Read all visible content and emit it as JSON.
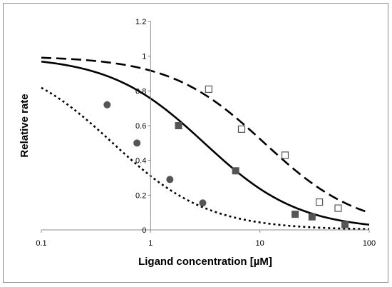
{
  "chart_data": {
    "type": "scatter",
    "title": "",
    "xlabel": "Ligand concentration [µM]",
    "ylabel": "Relative rate",
    "x_scale": "log",
    "xlim": [
      0.1,
      100
    ],
    "ylim": [
      0,
      1.2
    ],
    "x_ticks": [
      "0.1",
      "1",
      "10",
      "100"
    ],
    "y_ticks": [
      "0",
      "0.2",
      "0.4",
      "0.6",
      "0.8",
      "1",
      "1.2"
    ],
    "grid": false,
    "legend": "none",
    "series": [
      {
        "marker": "filled-circle",
        "color": "#555555",
        "points": [
          [
            0.4,
            0.72
          ],
          [
            0.75,
            0.5
          ],
          [
            1.5,
            0.29
          ],
          [
            3.0,
            0.155
          ]
        ],
        "curve": {
          "style": "dotted",
          "IC50": 0.45
        }
      },
      {
        "marker": "filled-square",
        "color": "#555555",
        "points": [
          [
            1.8,
            0.6
          ],
          [
            6.0,
            0.34
          ],
          [
            21,
            0.09
          ],
          [
            30,
            0.075
          ],
          [
            60,
            0.03
          ]
        ],
        "curve": {
          "style": "solid",
          "IC50": 3.1
        }
      },
      {
        "marker": "open-square",
        "color": "#555555",
        "points": [
          [
            3.4,
            0.81
          ],
          [
            6.8,
            0.58
          ],
          [
            17,
            0.43
          ],
          [
            35,
            0.16
          ],
          [
            52,
            0.125
          ]
        ],
        "curve": {
          "style": "dashed",
          "IC50": 11
        }
      }
    ]
  }
}
